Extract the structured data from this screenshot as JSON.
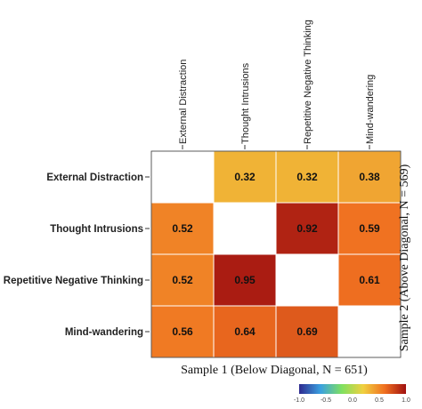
{
  "chart_data": {
    "type": "heatmap",
    "variables": [
      "External Distraction",
      "Thought Intrusions",
      "Repetitive Negative Thinking",
      "Mind-wandering"
    ],
    "matrix": [
      [
        null,
        0.32,
        0.32,
        0.38
      ],
      [
        0.52,
        null,
        0.92,
        0.59
      ],
      [
        0.52,
        0.95,
        null,
        0.61
      ],
      [
        0.56,
        0.64,
        0.69,
        null
      ]
    ],
    "labels": [
      [
        "",
        "0.32",
        "0.32",
        "0.38"
      ],
      [
        "0.52",
        "",
        "0.92",
        "0.59"
      ],
      [
        "0.52",
        "0.95",
        "",
        "0.61"
      ],
      [
        "0.56",
        "0.64",
        "0.69",
        ""
      ]
    ],
    "xlabel": "Sample 1 (Below Diagonal, N = 651)",
    "ylabel_right": "Sample 2 (Above Diagonal, N = 569)",
    "colorbar": {
      "range": [
        -1.0,
        1.0
      ],
      "ticks": [
        -1.0,
        -0.5,
        0.0,
        0.5,
        1.0
      ],
      "tick_labels": [
        "-1.0",
        "-0.5",
        "0.0",
        "0.5",
        "1.0"
      ],
      "colors": [
        "#2e2a8f",
        "#3aa0e0",
        "#7fe060",
        "#f0d040",
        "#f07020",
        "#a01010"
      ]
    },
    "diagonal_color": "#ffffff"
  }
}
